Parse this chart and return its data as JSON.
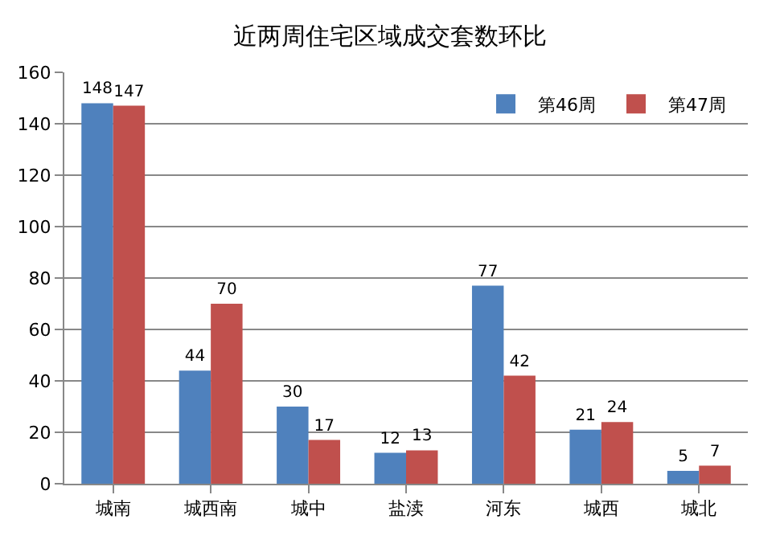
{
  "chart_data": {
    "type": "bar",
    "title": "近两周住宅区域成交套数环比",
    "categories": [
      "城南",
      "城西南",
      "城中",
      "盐渎",
      "河东",
      "城西",
      "城北"
    ],
    "series": [
      {
        "name": "第46周",
        "color": "#4f81bd",
        "values": [
          148,
          44,
          30,
          12,
          77,
          21,
          5
        ]
      },
      {
        "name": "第47周",
        "color": "#c0504d",
        "values": [
          147,
          70,
          17,
          13,
          42,
          24,
          7
        ]
      }
    ],
    "ylim": [
      0,
      160
    ],
    "yticks": [
      0,
      20,
      40,
      60,
      80,
      100,
      120,
      140,
      160
    ],
    "grid": "y",
    "legend": "top right",
    "data_labels": true
  }
}
